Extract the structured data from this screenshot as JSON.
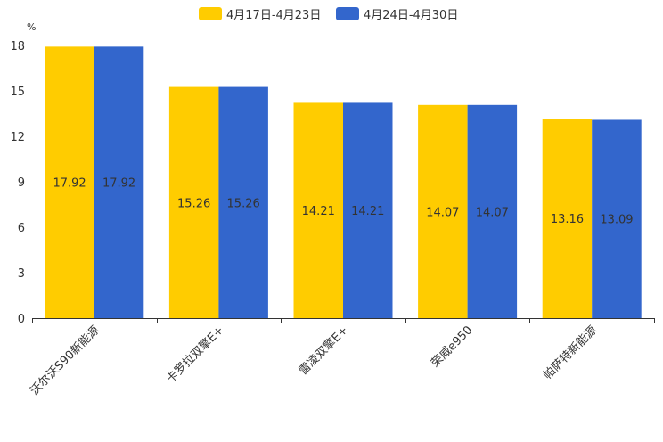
{
  "chart_data": {
    "type": "bar",
    "title": "",
    "xlabel": "",
    "ylabel": "%",
    "ylim": [
      0,
      18
    ],
    "yticks": [
      0,
      3,
      6,
      9,
      12,
      15,
      18
    ],
    "categories": [
      "沃尔沃S90新能源",
      "卡罗拉双擎E+",
      "雷凌双擎E+",
      "荣威e950",
      "帕萨特新能源"
    ],
    "series": [
      {
        "name": "4月17日-4月23日",
        "color": "#FFCC00",
        "values": [
          17.92,
          15.26,
          14.21,
          14.07,
          13.16
        ]
      },
      {
        "name": "4月24日-4月30日",
        "color": "#3366CC",
        "values": [
          17.92,
          15.26,
          14.21,
          14.07,
          13.09
        ]
      }
    ],
    "legend_position": "top-center",
    "grid": false
  }
}
